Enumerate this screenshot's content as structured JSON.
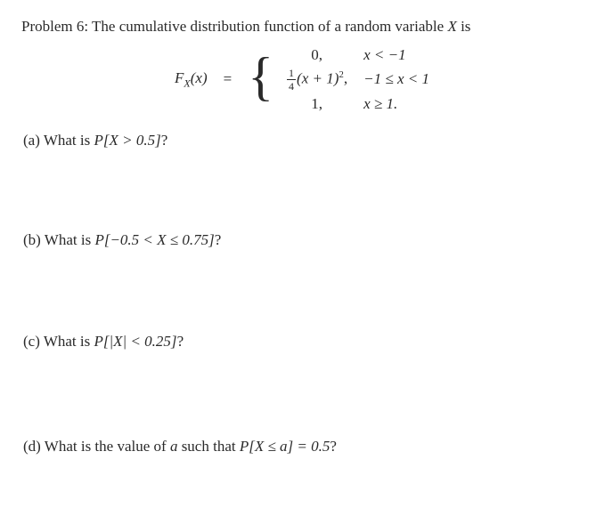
{
  "problem": {
    "label": "Problem 6:",
    "title_prefix": "The cumulative distribution function of a random variable ",
    "title_var": "X",
    "title_suffix": " is"
  },
  "equation": {
    "func_prefix": "F",
    "func_sub": "X",
    "func_arg": "(x)",
    "equals": "=",
    "cases": [
      {
        "expr": "0,",
        "cond": "x < −1"
      },
      {
        "expr_frac_num": "1",
        "expr_frac_den": "4",
        "expr_rest": "(x + 1)",
        "expr_power": "2",
        "expr_comma": ",",
        "cond": "−1 ≤ x < 1"
      },
      {
        "expr": "1,",
        "cond": "x ≥ 1."
      }
    ]
  },
  "parts": {
    "a": {
      "label": "(a)",
      "text_prefix": "What is ",
      "expr": "P[X > 0.5]",
      "text_suffix": "?"
    },
    "b": {
      "label": "(b)",
      "text_prefix": "What is ",
      "expr": "P[−0.5 < X ≤ 0.75]",
      "text_suffix": "?"
    },
    "c": {
      "label": "(c)",
      "text_prefix": "What is ",
      "expr": "P[|X| < 0.25]",
      "text_suffix": "?"
    },
    "d": {
      "label": "(d)",
      "text_prefix": "What is the value of ",
      "var": "a",
      "text_mid": " such that ",
      "expr": "P[X ≤ a] = 0.5",
      "text_suffix": "?"
    }
  }
}
